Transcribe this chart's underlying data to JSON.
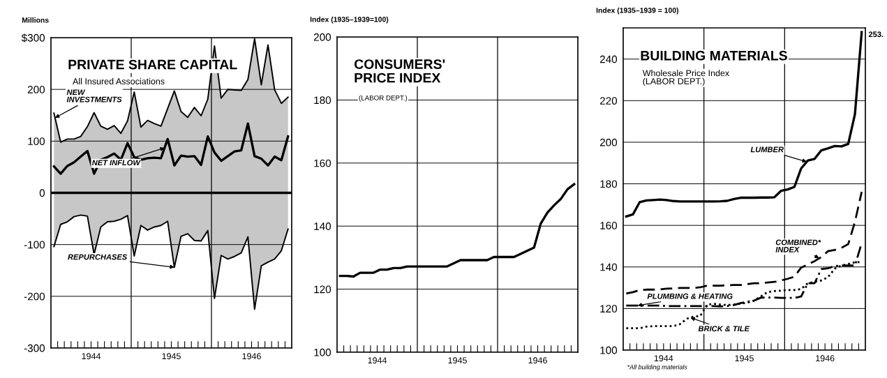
{
  "chart_data": [
    {
      "type": "area",
      "title": "PRIVATE SHARE CAPITAL",
      "subtitle": "All Insured Associations",
      "ylabel": "Millions",
      "x": [
        "1944-01-15",
        "1944-02-15",
        "1944-03-15",
        "1944-04-15",
        "1944-05-15",
        "1944-06-15",
        "1944-07-15",
        "1944-08-15",
        "1944-09-15",
        "1944-10-15",
        "1944-11-15",
        "1944-12-15",
        "1945-01-15",
        "1945-02-15",
        "1945-03-15",
        "1945-04-15",
        "1945-05-15",
        "1945-06-15",
        "1945-07-15",
        "1945-08-15",
        "1945-09-15",
        "1945-10-15",
        "1945-11-15",
        "1945-12-15",
        "1946-01-15",
        "1946-02-15",
        "1946-03-15",
        "1946-04-15",
        "1946-05-15",
        "1946-06-15",
        "1946-07-15",
        "1946-08-15",
        "1946-09-15",
        "1946-10-15",
        "1946-11-15",
        "1946-12-15"
      ],
      "xlim": [
        "1944-01",
        "1947-01"
      ],
      "xticks": [
        {
          "value": "1944-02",
          "label": null
        },
        {
          "value": "1944-03",
          "label": null
        },
        {
          "value": "1944-04",
          "label": null
        },
        {
          "value": "1944-05",
          "label": null
        },
        {
          "value": "1944-06",
          "label": null
        },
        {
          "value": "1944-07",
          "label": "1944"
        },
        {
          "value": "1944-08",
          "label": null
        },
        {
          "value": "1944-09",
          "label": null
        },
        {
          "value": "1944-10",
          "label": null
        },
        {
          "value": "1944-11",
          "label": null
        },
        {
          "value": "1944-12",
          "label": null
        },
        {
          "value": "1945-02",
          "label": null
        },
        {
          "value": "1945-03",
          "label": null
        },
        {
          "value": "1945-04",
          "label": null
        },
        {
          "value": "1945-05",
          "label": null
        },
        {
          "value": "1945-06",
          "label": null
        },
        {
          "value": "1945-07",
          "label": "1945"
        },
        {
          "value": "1945-08",
          "label": null
        },
        {
          "value": "1945-09",
          "label": null
        },
        {
          "value": "1945-10",
          "label": null
        },
        {
          "value": "1945-11",
          "label": null
        },
        {
          "value": "1945-12",
          "label": null
        },
        {
          "value": "1946-02",
          "label": null
        },
        {
          "value": "1946-03",
          "label": null
        },
        {
          "value": "1946-04",
          "label": null
        },
        {
          "value": "1946-05",
          "label": null
        },
        {
          "value": "1946-06",
          "label": null
        },
        {
          "value": "1946-07",
          "label": "1946"
        },
        {
          "value": "1946-08",
          "label": null
        },
        {
          "value": "1946-09",
          "label": null
        },
        {
          "value": "1946-10",
          "label": null
        },
        {
          "value": "1946-11",
          "label": null
        },
        {
          "value": "1946-12",
          "label": null
        }
      ],
      "ylim": [
        -300,
        300
      ],
      "yticks": [
        {
          "value": 300,
          "label": "$300"
        },
        200,
        100,
        0,
        {
          "value": -100,
          "label": "-100"
        },
        {
          "value": -200,
          "label": "-200"
        },
        {
          "value": -300,
          "label": "-300"
        }
      ],
      "grid": "y",
      "ref_lines": [
        {
          "axis": "x",
          "value": "1945-01"
        },
        {
          "axis": "x",
          "value": "1946-01"
        },
        {
          "axis": "y",
          "value": 0
        }
      ],
      "series": [
        {
          "type": "area",
          "color": "#000000",
          "values": [
            154,
            98,
            104,
            104,
            109,
            128,
            155,
            129,
            123,
            130,
            115,
            139,
            195,
            127,
            140,
            134,
            129,
            163,
            197,
            157,
            146,
            165,
            149,
            181,
            284,
            183,
            200,
            199,
            198,
            219,
            298,
            209,
            286,
            199,
            173,
            185
          ]
        },
        {
          "type": "line",
          "color": "#000000",
          "values": [
            51,
            37,
            52,
            59,
            70,
            81,
            37,
            64,
            69,
            76,
            64,
            96,
            69,
            64,
            67,
            68,
            67,
            104,
            53,
            72,
            70,
            71,
            54,
            109,
            78,
            62,
            71,
            80,
            82,
            134,
            71,
            66,
            53,
            70,
            63,
            109
          ]
        },
        {
          "type": "area",
          "color": "#000000",
          "values": [
            -104,
            -61,
            -56,
            -46,
            -43,
            -45,
            -119,
            -66,
            -56,
            -55,
            -51,
            -44,
            -122,
            -63,
            -72,
            -66,
            -63,
            -55,
            -144,
            -84,
            -79,
            -92,
            -93,
            -73,
            -204,
            -121,
            -128,
            -123,
            -116,
            -85,
            -225,
            -141,
            -134,
            -128,
            -112,
            -70
          ]
        }
      ],
      "annotations": [
        {
          "text": "NEW\nINVESTMENTS",
          "x": "1944-01-20",
          "y": 145
        },
        {
          "text": "NET INFLOW",
          "x": "1945-06-01",
          "y": 87
        },
        {
          "text": "REPURCHASES",
          "x": "1945-07-15",
          "y": -144
        }
      ]
    },
    {
      "type": "line",
      "title": "CONSUMERS'\nPRICE INDEX",
      "subtitle": "(LABOR DEPT.)",
      "ylabel": "Index (1935–1939=100)",
      "x": [
        "1944-01-15",
        "1944-02-15",
        "1944-03-15",
        "1944-04-15",
        "1944-05-15",
        "1944-06-15",
        "1944-07-15",
        "1944-08-15",
        "1944-09-15",
        "1944-10-15",
        "1944-11-15",
        "1944-12-15",
        "1945-01-15",
        "1945-02-15",
        "1945-03-15",
        "1945-04-15",
        "1945-05-15",
        "1945-06-15",
        "1945-07-15",
        "1945-08-15",
        "1945-09-15",
        "1945-10-15",
        "1945-11-15",
        "1945-12-15",
        "1946-01-15",
        "1946-02-15",
        "1946-03-15",
        "1946-04-15",
        "1946-05-15",
        "1946-06-15",
        "1946-07-15",
        "1946-08-15",
        "1946-09-15",
        "1946-10-15",
        "1946-11-15",
        "1946-12-15"
      ],
      "xlim": [
        "1944-01",
        "1947-01"
      ],
      "xticks": [
        {
          "value": "1944-02",
          "label": null
        },
        {
          "value": "1944-03",
          "label": null
        },
        {
          "value": "1944-04",
          "label": null
        },
        {
          "value": "1944-05",
          "label": null
        },
        {
          "value": "1944-06",
          "label": null
        },
        {
          "value": "1944-07",
          "label": "1944"
        },
        {
          "value": "1944-08",
          "label": null
        },
        {
          "value": "1944-09",
          "label": null
        },
        {
          "value": "1944-10",
          "label": null
        },
        {
          "value": "1944-11",
          "label": null
        },
        {
          "value": "1944-12",
          "label": null
        },
        {
          "value": "1945-02",
          "label": null
        },
        {
          "value": "1945-03",
          "label": null
        },
        {
          "value": "1945-04",
          "label": null
        },
        {
          "value": "1945-05",
          "label": null
        },
        {
          "value": "1945-06",
          "label": null
        },
        {
          "value": "1945-07",
          "label": "1945"
        },
        {
          "value": "1945-08",
          "label": null
        },
        {
          "value": "1945-09",
          "label": null
        },
        {
          "value": "1945-10",
          "label": null
        },
        {
          "value": "1945-11",
          "label": null
        },
        {
          "value": "1945-12",
          "label": null
        },
        {
          "value": "1946-02",
          "label": null
        },
        {
          "value": "1946-03",
          "label": null
        },
        {
          "value": "1946-04",
          "label": null
        },
        {
          "value": "1946-05",
          "label": null
        },
        {
          "value": "1946-06",
          "label": null
        },
        {
          "value": "1946-07",
          "label": "1946"
        },
        {
          "value": "1946-08",
          "label": null
        },
        {
          "value": "1946-09",
          "label": null
        },
        {
          "value": "1946-10",
          "label": null
        },
        {
          "value": "1946-11",
          "label": null
        },
        {
          "value": "1946-12",
          "label": null
        }
      ],
      "ylim": [
        100,
        200
      ],
      "yticks": [
        100,
        120,
        140,
        160,
        180,
        200
      ],
      "grid": "y",
      "ref_lines": [
        {
          "axis": "x",
          "value": "1945-01"
        },
        {
          "axis": "x",
          "value": "1946-01"
        }
      ],
      "series": [
        {
          "color": "#000000",
          "line_style": "solid",
          "values": [
            124.2,
            124.2,
            124.0,
            125.2,
            125.2,
            125.2,
            126.2,
            126.2,
            126.7,
            126.7,
            127.2,
            127.2,
            127.2,
            127.2,
            127.2,
            127.2,
            127.2,
            128.2,
            129.2,
            129.2,
            129.2,
            129.2,
            129.2,
            130.2,
            130.2,
            130.2,
            130.2,
            131.2,
            132.2,
            133.2,
            140.8,
            144.3,
            146.6,
            148.6,
            151.7,
            153.3
          ]
        }
      ]
    },
    {
      "type": "line",
      "title": "BUILDING MATERIALS",
      "subtitle": "Wholesale Price Index\n(LABOR DEPT.)",
      "ylabel": "Index (1935–1939 = 100)",
      "x": [
        "1944-01-15",
        "1944-02-15",
        "1944-03-15",
        "1944-04-15",
        "1944-05-15",
        "1944-06-15",
        "1944-07-15",
        "1944-08-15",
        "1944-09-15",
        "1944-10-15",
        "1944-11-15",
        "1944-12-15",
        "1945-01-15",
        "1945-02-15",
        "1945-03-15",
        "1945-04-15",
        "1945-05-15",
        "1945-06-15",
        "1945-07-15",
        "1945-08-15",
        "1945-09-15",
        "1945-10-15",
        "1945-11-15",
        "1945-12-15",
        "1946-01-15",
        "1946-02-15",
        "1946-03-15",
        "1946-04-15",
        "1946-05-15",
        "1946-06-15",
        "1946-07-15",
        "1946-08-15",
        "1946-09-15",
        "1946-10-15",
        "1946-11-15",
        "1946-12-15"
      ],
      "xlim": [
        "1944-01",
        "1947-01"
      ],
      "xticks": [
        {
          "value": "1944-02",
          "label": null
        },
        {
          "value": "1944-03",
          "label": null
        },
        {
          "value": "1944-04",
          "label": null
        },
        {
          "value": "1944-05",
          "label": null
        },
        {
          "value": "1944-06",
          "label": null
        },
        {
          "value": "1944-07",
          "label": "1944"
        },
        {
          "value": "1944-08",
          "label": null
        },
        {
          "value": "1944-09",
          "label": null
        },
        {
          "value": "1944-10",
          "label": null
        },
        {
          "value": "1944-11",
          "label": null
        },
        {
          "value": "1944-12",
          "label": null
        },
        {
          "value": "1945-02",
          "label": null
        },
        {
          "value": "1945-03",
          "label": null
        },
        {
          "value": "1945-04",
          "label": null
        },
        {
          "value": "1945-05",
          "label": null
        },
        {
          "value": "1945-06",
          "label": null
        },
        {
          "value": "1945-07",
          "label": "1945"
        },
        {
          "value": "1945-08",
          "label": null
        },
        {
          "value": "1945-09",
          "label": null
        },
        {
          "value": "1945-10",
          "label": null
        },
        {
          "value": "1945-11",
          "label": null
        },
        {
          "value": "1945-12",
          "label": null
        },
        {
          "value": "1946-02",
          "label": null
        },
        {
          "value": "1946-03",
          "label": null
        },
        {
          "value": "1946-04",
          "label": null
        },
        {
          "value": "1946-05",
          "label": null
        },
        {
          "value": "1946-06",
          "label": null
        },
        {
          "value": "1946-07",
          "label": "1946"
        },
        {
          "value": "1946-08",
          "label": null
        },
        {
          "value": "1946-09",
          "label": null
        },
        {
          "value": "1946-10",
          "label": null
        },
        {
          "value": "1946-11",
          "label": null
        },
        {
          "value": "1946-12",
          "label": null
        }
      ],
      "ylim": [
        100,
        255
      ],
      "yticks": [
        100,
        120,
        140,
        160,
        180,
        200,
        220,
        240
      ],
      "grid": "y",
      "ref_lines": [
        {
          "axis": "x",
          "value": "1945-01"
        },
        {
          "axis": "x",
          "value": "1946-01"
        }
      ],
      "series": [
        {
          "color": "#000000",
          "line_style": "solid",
          "values": [
            164.3,
            165.3,
            171.2,
            172.0,
            172.2,
            172.4,
            172.2,
            171.7,
            171.5,
            171.5,
            171.5,
            171.5,
            171.5,
            171.5,
            171.6,
            171.8,
            172.7,
            173.3,
            173.3,
            173.3,
            173.4,
            173.4,
            173.5,
            176.6,
            177.3,
            178.5,
            187.4,
            191.2,
            192.0,
            196.1,
            197.1,
            198.2,
            198.0,
            199.2,
            213.5,
            253
          ],
          "value_labels": [
            null,
            null,
            null,
            null,
            null,
            null,
            null,
            null,
            null,
            null,
            null,
            null,
            null,
            null,
            null,
            null,
            null,
            null,
            null,
            null,
            null,
            null,
            null,
            null,
            null,
            null,
            null,
            null,
            null,
            null,
            null,
            null,
            null,
            null,
            null,
            "253."
          ]
        },
        {
          "color": "#000000",
          "line_style": "dashed",
          "values": [
            127.2,
            127.9,
            128.9,
            129.1,
            129.1,
            129.2,
            129.6,
            129.7,
            129.9,
            129.9,
            129.9,
            130.2,
            131.0,
            131.0,
            131.0,
            131.2,
            131.3,
            131.3,
            131.7,
            132.2,
            132.2,
            132.5,
            132.8,
            133.5,
            134.3,
            135.3,
            139.7,
            141.2,
            142.8,
            144.8,
            147.6,
            148.2,
            149.2,
            151.0,
            161.7,
            176.1
          ]
        },
        {
          "color": "#000000",
          "line_style": "dashdot",
          "values": [
            121.4,
            121.4,
            121.4,
            121.4,
            121.4,
            121.4,
            121.2,
            121.2,
            121.2,
            121.2,
            121.2,
            121.2,
            121.2,
            121.2,
            121.0,
            121.2,
            121.7,
            122.6,
            123.3,
            123.8,
            125.2,
            125.3,
            125.3,
            125.1,
            125.1,
            125.1,
            125.8,
            132.2,
            132.2,
            139.0,
            139.4,
            140.4,
            140.7,
            140.7,
            140.7,
            151.5
          ]
        },
        {
          "color": "#000000",
          "line_style": "dotted",
          "values": [
            110.5,
            110.5,
            110.5,
            111.3,
            111.5,
            111.5,
            111.5,
            111.5,
            112.5,
            115.1,
            116.1,
            116.4,
            121.7,
            122.3,
            121.9,
            121.7,
            121.9,
            122.3,
            122.8,
            123.8,
            125.8,
            127.9,
            128.4,
            128.6,
            128.9,
            128.9,
            129.4,
            132.2,
            132.8,
            133.5,
            135.1,
            139.2,
            140.7,
            141.4,
            142.3,
            142.3
          ]
        }
      ],
      "annotations": [
        {
          "text": "LUMBER",
          "x": "1946-04-10",
          "y": 190.6
        },
        {
          "text": "COMBINED*\nINDEX",
          "x": "1946-06-05",
          "y": 144.2
        },
        {
          "text": "PLUMBING & HEATING",
          "x": "1944-03-05",
          "y": 121.4
        },
        {
          "text": "BRICK & TILE",
          "x": "1944-11-01",
          "y": 115.6
        },
        "*All building materials"
      ]
    }
  ]
}
